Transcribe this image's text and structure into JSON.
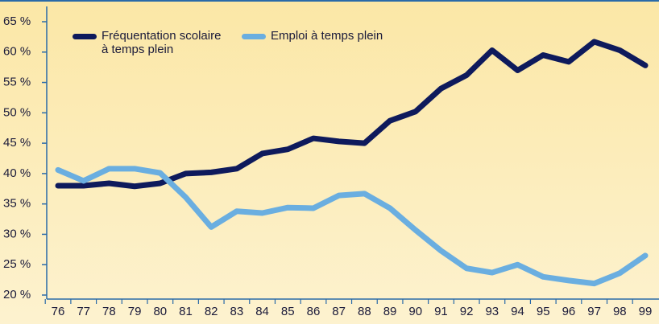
{
  "chart_data": {
    "type": "line",
    "categories": [
      "76",
      "77",
      "78",
      "79",
      "80",
      "81",
      "82",
      "83",
      "84",
      "85",
      "86",
      "87",
      "88",
      "89",
      "90",
      "91",
      "92",
      "93",
      "94",
      "95",
      "96",
      "97",
      "98",
      "99"
    ],
    "series": [
      {
        "name": "Fréquentation scolaire à temps plein",
        "color": "#0e1a5c",
        "values": [
          38,
          38,
          38.4,
          37.9,
          38.4,
          40,
          40.2,
          40.8,
          43.3,
          44,
          45.8,
          45.3,
          45,
          48.7,
          50.2,
          54,
          56.2,
          60.3,
          57,
          59.5,
          58.4,
          61.7,
          60.3,
          57.8
        ]
      },
      {
        "name": "Emploi à temps plein",
        "color": "#6aaee0",
        "values": [
          40.6,
          38.8,
          40.8,
          40.8,
          40.1,
          36.1,
          31.2,
          33.8,
          33.5,
          34.4,
          34.3,
          36.4,
          36.7,
          34.3,
          30.7,
          27.3,
          24.4,
          23.7,
          25,
          23,
          22.4,
          21.9,
          23.6,
          26.5
        ]
      }
    ],
    "ylim": [
      20,
      65
    ],
    "yticks": [
      {
        "value": 20,
        "label": "20 %"
      },
      {
        "value": 25,
        "label": "25 %"
      },
      {
        "value": 30,
        "label": "30 %"
      },
      {
        "value": 35,
        "label": "35 %"
      },
      {
        "value": 40,
        "label": "40 %"
      },
      {
        "value": 45,
        "label": "45 %"
      },
      {
        "value": 50,
        "label": "50 %"
      },
      {
        "value": 55,
        "label": "55 %"
      },
      {
        "value": 60,
        "label": "60 %"
      },
      {
        "value": 65,
        "label": "65 %"
      }
    ]
  }
}
